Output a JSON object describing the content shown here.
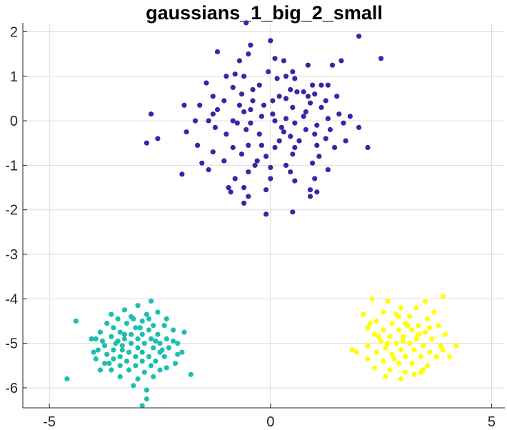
{
  "chart_data": {
    "type": "scatter",
    "title": "gaussians_1_big_2_small",
    "xlabel": "",
    "ylabel": "",
    "xlim": [
      -5.6,
      5.3
    ],
    "ylim": [
      -6.45,
      2.2
    ],
    "grid": true,
    "x_ticks": [
      -5,
      0,
      5
    ],
    "x_tick_labels": [
      "-5",
      "0",
      "5"
    ],
    "y_ticks": [
      2,
      1,
      0,
      -1,
      -2,
      -3,
      -4,
      -5,
      -6
    ],
    "y_tick_labels": [
      "2",
      "1",
      "0",
      "-1",
      "-2",
      "-3",
      "-4",
      "-5",
      "-6"
    ],
    "series": [
      {
        "color": "#3a25a8",
        "points": [
          [
            -0.55,
            2.2
          ],
          [
            2.0,
            1.9
          ],
          [
            0.0,
            1.8
          ],
          [
            -1.2,
            1.55
          ],
          [
            -0.45,
            1.7
          ],
          [
            -0.5,
            1.5
          ],
          [
            2.5,
            1.4
          ],
          [
            0.1,
            1.4
          ],
          [
            -0.7,
            1.35
          ],
          [
            0.3,
            1.35
          ],
          [
            0.85,
            1.25
          ],
          [
            1.4,
            1.25
          ],
          [
            1.6,
            1.35
          ],
          [
            -0.05,
            1.1
          ],
          [
            0.5,
            1.1
          ],
          [
            -1.0,
            1.0
          ],
          [
            -0.8,
            1.05
          ],
          [
            -0.6,
            1.0
          ],
          [
            0.35,
            1.0
          ],
          [
            0.55,
            0.95
          ],
          [
            -1.45,
            0.85
          ],
          [
            0.95,
            0.8
          ],
          [
            1.15,
            0.8
          ],
          [
            1.3,
            0.8
          ],
          [
            -0.85,
            0.75
          ],
          [
            -0.4,
            0.7
          ],
          [
            0.45,
            0.7
          ],
          [
            0.75,
            0.65
          ],
          [
            1.0,
            0.6
          ],
          [
            -1.3,
            0.55
          ],
          [
            -0.65,
            0.6
          ],
          [
            0.2,
            0.55
          ],
          [
            -1.05,
            0.45
          ],
          [
            -0.4,
            0.45
          ],
          [
            0.05,
            0.45
          ],
          [
            0.35,
            0.5
          ],
          [
            0.9,
            0.4
          ],
          [
            1.25,
            0.45
          ],
          [
            -1.95,
            0.35
          ],
          [
            -1.6,
            0.35
          ],
          [
            -1.2,
            0.25
          ],
          [
            -0.7,
            0.35
          ],
          [
            -0.15,
            0.35
          ],
          [
            0.5,
            0.3
          ],
          [
            0.8,
            0.2
          ],
          [
            1.15,
            0.3
          ],
          [
            1.55,
            0.15
          ],
          [
            -2.7,
            0.15
          ],
          [
            -1.3,
            0.15
          ],
          [
            -0.6,
            0.2
          ],
          [
            -0.2,
            0.1
          ],
          [
            0.05,
            0.15
          ],
          [
            0.35,
            0.05
          ],
          [
            0.75,
            0.1
          ],
          [
            1.3,
            0.05
          ],
          [
            -1.4,
            0.0
          ],
          [
            -0.85,
            0.0
          ],
          [
            -0.45,
            -0.05
          ],
          [
            0.1,
            0.0
          ],
          [
            0.55,
            -0.05
          ],
          [
            1.05,
            -0.1
          ],
          [
            1.65,
            -0.05
          ],
          [
            -1.9,
            -0.25
          ],
          [
            -1.25,
            -0.15
          ],
          [
            -0.55,
            -0.2
          ],
          [
            0.25,
            -0.15
          ],
          [
            0.8,
            -0.2
          ],
          [
            1.35,
            -0.2
          ],
          [
            2.0,
            -0.15
          ],
          [
            -2.55,
            -0.4
          ],
          [
            -1.0,
            -0.3
          ],
          [
            -0.25,
            -0.3
          ],
          [
            0.45,
            -0.35
          ],
          [
            1.0,
            -0.3
          ],
          [
            1.25,
            -0.4
          ],
          [
            -2.8,
            -0.5
          ],
          [
            -1.65,
            -0.55
          ],
          [
            -0.85,
            -0.6
          ],
          [
            -0.5,
            -0.55
          ],
          [
            0.1,
            -0.6
          ],
          [
            0.55,
            -0.6
          ],
          [
            1.45,
            -0.6
          ],
          [
            2.2,
            -0.6
          ],
          [
            -1.3,
            -0.7
          ],
          [
            -0.65,
            -0.75
          ],
          [
            -0.1,
            -0.8
          ],
          [
            0.5,
            -0.75
          ],
          [
            1.1,
            -0.8
          ],
          [
            -1.05,
            -0.9
          ],
          [
            -0.35,
            -1.0
          ],
          [
            0.35,
            -1.0
          ],
          [
            0.95,
            -0.95
          ],
          [
            -0.5,
            -1.15
          ],
          [
            0.0,
            -1.05
          ],
          [
            0.45,
            -1.15
          ],
          [
            1.3,
            -1.1
          ],
          [
            -1.4,
            -1.1
          ],
          [
            -2.0,
            -1.2
          ],
          [
            -0.8,
            -1.3
          ],
          [
            0.0,
            -1.3
          ],
          [
            0.55,
            -1.35
          ],
          [
            1.0,
            -1.3
          ],
          [
            -0.6,
            -1.5
          ],
          [
            -0.1,
            -1.55
          ],
          [
            0.9,
            -1.55
          ],
          [
            -0.9,
            -1.6
          ],
          [
            1.05,
            -1.6
          ],
          [
            -0.5,
            -1.7
          ],
          [
            0.9,
            -1.7
          ],
          [
            -0.6,
            -1.85
          ],
          [
            -0.1,
            -2.1
          ],
          [
            0.5,
            -2.05
          ],
          [
            -0.3,
            -0.9
          ],
          [
            0.2,
            -0.45
          ],
          [
            -0.95,
            -1.5
          ],
          [
            1.5,
            0.55
          ],
          [
            -0.25,
            0.8
          ],
          [
            0.65,
            -0.45
          ],
          [
            -1.7,
            0.0
          ],
          [
            1.8,
            0.1
          ],
          [
            -0.75,
            -0.05
          ],
          [
            0.3,
            -0.25
          ],
          [
            0.15,
            0.95
          ],
          [
            -1.55,
            -0.95
          ],
          [
            1.7,
            -0.45
          ],
          [
            -0.2,
            -0.55
          ],
          [
            0.85,
            0.55
          ],
          [
            -0.45,
            0.25
          ],
          [
            0.6,
            0.65
          ],
          [
            1.05,
            -0.55
          ]
        ]
      },
      {
        "color": "#1bbfaf",
        "points": [
          [
            -4.4,
            -4.5
          ],
          [
            -4.6,
            -5.8
          ],
          [
            -2.7,
            -4.05
          ],
          [
            -3.0,
            -4.15
          ],
          [
            -3.3,
            -4.25
          ],
          [
            -2.55,
            -4.3
          ],
          [
            -3.6,
            -4.35
          ],
          [
            -2.8,
            -4.35
          ],
          [
            -3.15,
            -4.4
          ],
          [
            -3.45,
            -4.45
          ],
          [
            -2.35,
            -4.45
          ],
          [
            -3.7,
            -4.55
          ],
          [
            -3.25,
            -4.55
          ],
          [
            -2.9,
            -4.5
          ],
          [
            -2.65,
            -4.6
          ],
          [
            -2.4,
            -4.6
          ],
          [
            -3.55,
            -4.65
          ],
          [
            -3.05,
            -4.65
          ],
          [
            -2.75,
            -4.7
          ],
          [
            -2.2,
            -4.7
          ],
          [
            -3.85,
            -4.75
          ],
          [
            -3.4,
            -4.75
          ],
          [
            -3.15,
            -4.8
          ],
          [
            -2.9,
            -4.8
          ],
          [
            -2.55,
            -4.8
          ],
          [
            -1.95,
            -4.75
          ],
          [
            -3.6,
            -4.85
          ],
          [
            -3.3,
            -4.9
          ],
          [
            -3.0,
            -4.9
          ],
          [
            -2.7,
            -4.9
          ],
          [
            -2.35,
            -4.9
          ],
          [
            -3.95,
            -4.9
          ],
          [
            -4.05,
            -4.9
          ],
          [
            -3.45,
            -4.95
          ],
          [
            -3.15,
            -5.0
          ],
          [
            -2.85,
            -5.0
          ],
          [
            -2.5,
            -5.0
          ],
          [
            -2.1,
            -5.0
          ],
          [
            -3.75,
            -5.05
          ],
          [
            -3.35,
            -5.05
          ],
          [
            -3.0,
            -5.1
          ],
          [
            -2.65,
            -5.1
          ],
          [
            -2.3,
            -5.1
          ],
          [
            -3.9,
            -5.15
          ],
          [
            -3.55,
            -5.15
          ],
          [
            -3.2,
            -5.2
          ],
          [
            -2.9,
            -5.2
          ],
          [
            -2.5,
            -5.2
          ],
          [
            -2.0,
            -5.2
          ],
          [
            -3.7,
            -5.25
          ],
          [
            -3.4,
            -5.3
          ],
          [
            -3.05,
            -5.3
          ],
          [
            -2.75,
            -5.3
          ],
          [
            -2.4,
            -5.3
          ],
          [
            -3.95,
            -5.35
          ],
          [
            -3.55,
            -5.35
          ],
          [
            -3.25,
            -5.4
          ],
          [
            -2.9,
            -5.4
          ],
          [
            -2.6,
            -5.4
          ],
          [
            -2.15,
            -5.45
          ],
          [
            -3.75,
            -5.45
          ],
          [
            -3.4,
            -5.5
          ],
          [
            -3.05,
            -5.5
          ],
          [
            -2.7,
            -5.5
          ],
          [
            -2.35,
            -5.55
          ],
          [
            -3.6,
            -5.6
          ],
          [
            -3.2,
            -5.6
          ],
          [
            -2.85,
            -5.65
          ],
          [
            -2.5,
            -5.6
          ],
          [
            -1.8,
            -5.7
          ],
          [
            -3.4,
            -5.75
          ],
          [
            -3.0,
            -5.8
          ],
          [
            -2.65,
            -5.75
          ],
          [
            -3.85,
            -5.6
          ],
          [
            -3.1,
            -5.95
          ],
          [
            -2.8,
            -6.05
          ],
          [
            -2.8,
            -6.25
          ],
          [
            -2.9,
            -6.4
          ],
          [
            -3.3,
            -4.8
          ],
          [
            -2.45,
            -5.15
          ],
          [
            -3.5,
            -5.0
          ],
          [
            -2.2,
            -4.95
          ],
          [
            -3.1,
            -4.45
          ],
          [
            -2.6,
            -4.95
          ],
          [
            -3.65,
            -5.45
          ],
          [
            -2.95,
            -4.65
          ],
          [
            -4.0,
            -5.2
          ],
          [
            -2.1,
            -5.25
          ],
          [
            -3.35,
            -5.15
          ],
          [
            -2.75,
            -4.45
          ],
          [
            -3.8,
            -4.95
          ]
        ]
      },
      {
        "color": "#ffff00",
        "points": [
          [
            2.3,
            -4.0
          ],
          [
            3.9,
            -3.95
          ],
          [
            2.65,
            -4.05
          ],
          [
            3.5,
            -4.05
          ],
          [
            2.95,
            -4.2
          ],
          [
            3.3,
            -4.2
          ],
          [
            2.55,
            -4.3
          ],
          [
            3.7,
            -4.3
          ],
          [
            2.1,
            -4.35
          ],
          [
            2.85,
            -4.35
          ],
          [
            3.15,
            -4.4
          ],
          [
            3.55,
            -4.45
          ],
          [
            2.4,
            -4.5
          ],
          [
            2.75,
            -4.55
          ],
          [
            3.05,
            -4.55
          ],
          [
            3.35,
            -4.6
          ],
          [
            3.8,
            -4.6
          ],
          [
            2.2,
            -4.65
          ],
          [
            2.55,
            -4.7
          ],
          [
            2.9,
            -4.7
          ],
          [
            3.2,
            -4.7
          ],
          [
            3.5,
            -4.75
          ],
          [
            3.95,
            -4.8
          ],
          [
            2.35,
            -4.8
          ],
          [
            2.7,
            -4.85
          ],
          [
            3.0,
            -4.85
          ],
          [
            3.3,
            -4.9
          ],
          [
            3.65,
            -4.9
          ],
          [
            2.5,
            -4.95
          ],
          [
            2.85,
            -5.0
          ],
          [
            3.15,
            -5.0
          ],
          [
            3.45,
            -5.05
          ],
          [
            3.85,
            -5.05
          ],
          [
            2.2,
            -5.05
          ],
          [
            2.6,
            -5.1
          ],
          [
            2.95,
            -5.15
          ],
          [
            3.25,
            -5.15
          ],
          [
            3.6,
            -5.2
          ],
          [
            4.2,
            -5.05
          ],
          [
            1.85,
            -5.15
          ],
          [
            2.4,
            -5.2
          ],
          [
            2.75,
            -5.25
          ],
          [
            3.05,
            -5.3
          ],
          [
            3.4,
            -5.3
          ],
          [
            3.75,
            -5.3
          ],
          [
            2.2,
            -5.35
          ],
          [
            2.55,
            -5.4
          ],
          [
            2.9,
            -5.45
          ],
          [
            3.2,
            -5.45
          ],
          [
            3.55,
            -5.5
          ],
          [
            2.35,
            -5.55
          ],
          [
            2.7,
            -5.6
          ],
          [
            3.05,
            -5.65
          ],
          [
            3.4,
            -5.65
          ],
          [
            2.6,
            -5.75
          ],
          [
            2.95,
            -5.8
          ],
          [
            3.25,
            -5.7
          ],
          [
            2.45,
            -4.85
          ],
          [
            3.0,
            -4.95
          ],
          [
            3.35,
            -4.8
          ],
          [
            2.65,
            -5.0
          ],
          [
            3.1,
            -4.6
          ],
          [
            2.8,
            -5.35
          ],
          [
            3.6,
            -4.65
          ],
          [
            4.05,
            -5.3
          ],
          [
            1.95,
            -5.2
          ],
          [
            3.9,
            -5.15
          ],
          [
            2.25,
            -4.55
          ],
          [
            2.9,
            -4.4
          ],
          [
            3.45,
            -5.6
          ]
        ]
      }
    ]
  }
}
